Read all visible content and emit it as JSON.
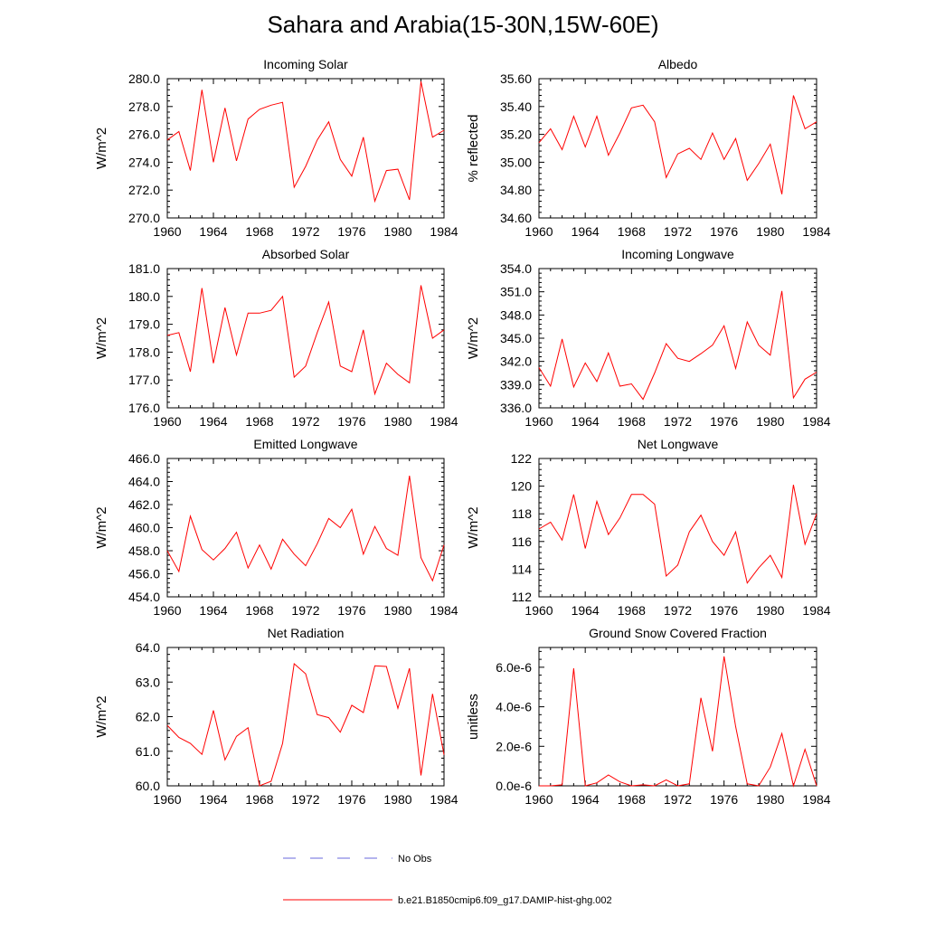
{
  "title": "Sahara and Arabia(15-30N,15W-60E)",
  "colors": {
    "model": "#ff0000",
    "obs": "#6a6adc",
    "axis": "#000000"
  },
  "legend": {
    "obs_label": "No Obs",
    "model_label": "b.e21.B1850cmip6.f09_g17.DAMIP-hist-ghg.002"
  },
  "chart_data": [
    {
      "type": "line",
      "title": "Incoming Solar",
      "ylabel": "W/m^2",
      "xlim": [
        1960,
        1984
      ],
      "ylim": [
        270,
        280
      ],
      "xticks": [
        "1960",
        "1964",
        "1968",
        "1972",
        "1976",
        "1980",
        "1984"
      ],
      "yticks": [
        "270.0",
        "272.0",
        "274.0",
        "276.0",
        "278.0",
        "280.0"
      ],
      "x": [
        1960,
        1961,
        1962,
        1963,
        1964,
        1965,
        1966,
        1967,
        1968,
        1969,
        1970,
        1971,
        1972,
        1973,
        1974,
        1975,
        1976,
        1977,
        1978,
        1979,
        1980,
        1981,
        1982,
        1983,
        1984
      ],
      "series": [
        {
          "name": "b.e21.B1850cmip6.f09_g17.DAMIP-hist-ghg.002",
          "values": [
            275.6,
            276.2,
            273.4,
            279.2,
            274.0,
            277.9,
            274.1,
            277.1,
            277.8,
            278.1,
            278.3,
            272.2,
            273.7,
            275.6,
            276.9,
            274.2,
            273.0,
            275.8,
            271.2,
            273.4,
            273.5,
            271.3,
            279.8,
            275.8,
            276.3
          ]
        }
      ]
    },
    {
      "type": "line",
      "title": "Albedo",
      "ylabel": "% reflected",
      "xlim": [
        1960,
        1984
      ],
      "ylim": [
        34.6,
        35.6
      ],
      "xticks": [
        "1960",
        "1964",
        "1968",
        "1972",
        "1976",
        "1980",
        "1984"
      ],
      "yticks": [
        "34.60",
        "34.80",
        "35.00",
        "35.20",
        "35.40",
        "35.60"
      ],
      "x": [
        1960,
        1961,
        1962,
        1963,
        1964,
        1965,
        1966,
        1967,
        1968,
        1969,
        1970,
        1971,
        1972,
        1973,
        1974,
        1975,
        1976,
        1977,
        1978,
        1979,
        1980,
        1981,
        1982,
        1983,
        1984
      ],
      "series": [
        {
          "name": "b.e21.B1850cmip6.f09_g17.DAMIP-hist-ghg.002",
          "values": [
            35.14,
            35.24,
            35.09,
            35.33,
            35.11,
            35.33,
            35.05,
            35.21,
            35.39,
            35.41,
            35.29,
            34.89,
            35.06,
            35.1,
            35.02,
            35.21,
            35.02,
            35.17,
            34.87,
            34.99,
            35.13,
            34.77,
            35.48,
            35.24,
            35.29
          ]
        }
      ]
    },
    {
      "type": "line",
      "title": "Absorbed Solar",
      "ylabel": "W/m^2",
      "xlim": [
        1960,
        1984
      ],
      "ylim": [
        176,
        181
      ],
      "xticks": [
        "1960",
        "1964",
        "1968",
        "1972",
        "1976",
        "1980",
        "1984"
      ],
      "yticks": [
        "176.0",
        "177.0",
        "178.0",
        "179.0",
        "180.0",
        "181.0"
      ],
      "x": [
        1960,
        1961,
        1962,
        1963,
        1964,
        1965,
        1966,
        1967,
        1968,
        1969,
        1970,
        1971,
        1972,
        1973,
        1974,
        1975,
        1976,
        1977,
        1978,
        1979,
        1980,
        1981,
        1982,
        1983,
        1984
      ],
      "series": [
        {
          "name": "b.e21.B1850cmip6.f09_g17.DAMIP-hist-ghg.002",
          "values": [
            178.6,
            178.7,
            177.3,
            180.3,
            177.6,
            179.6,
            177.9,
            179.4,
            179.4,
            179.5,
            180.0,
            177.1,
            177.5,
            178.7,
            179.8,
            177.5,
            177.3,
            178.8,
            176.5,
            177.6,
            177.2,
            176.9,
            180.4,
            178.5,
            178.8
          ]
        }
      ]
    },
    {
      "type": "line",
      "title": "Incoming Longwave",
      "ylabel": "W/m^2",
      "xlim": [
        1960,
        1984
      ],
      "ylim": [
        336,
        354
      ],
      "xticks": [
        "1960",
        "1964",
        "1968",
        "1972",
        "1976",
        "1980",
        "1984"
      ],
      "yticks": [
        "336.0",
        "339.0",
        "342.0",
        "345.0",
        "348.0",
        "351.0",
        "354.0"
      ],
      "x": [
        1960,
        1961,
        1962,
        1963,
        1964,
        1965,
        1966,
        1967,
        1968,
        1969,
        1970,
        1971,
        1972,
        1973,
        1974,
        1975,
        1976,
        1977,
        1978,
        1979,
        1980,
        1981,
        1982,
        1983,
        1984
      ],
      "series": [
        {
          "name": "b.e21.B1850cmip6.f09_g17.DAMIP-hist-ghg.002",
          "values": [
            341.2,
            338.8,
            344.9,
            338.7,
            341.8,
            339.4,
            343.1,
            338.8,
            339.1,
            337.1,
            340.5,
            344.3,
            342.4,
            342.0,
            343.0,
            344.1,
            346.6,
            341.1,
            347.1,
            344.1,
            342.8,
            351.1,
            337.3,
            339.7,
            340.6
          ]
        }
      ]
    },
    {
      "type": "line",
      "title": "Emitted Longwave",
      "ylabel": "W/m^2",
      "xlim": [
        1960,
        1984
      ],
      "ylim": [
        454,
        466
      ],
      "xticks": [
        "1960",
        "1964",
        "1968",
        "1972",
        "1976",
        "1980",
        "1984"
      ],
      "yticks": [
        "454.0",
        "456.0",
        "458.0",
        "460.0",
        "462.0",
        "464.0",
        "466.0"
      ],
      "x": [
        1960,
        1961,
        1962,
        1963,
        1964,
        1965,
        1966,
        1967,
        1968,
        1969,
        1970,
        1971,
        1972,
        1973,
        1974,
        1975,
        1976,
        1977,
        1978,
        1979,
        1980,
        1981,
        1982,
        1983,
        1984
      ],
      "series": [
        {
          "name": "b.e21.B1850cmip6.f09_g17.DAMIP-hist-ghg.002",
          "values": [
            458.0,
            456.2,
            461.0,
            458.1,
            457.2,
            458.2,
            459.6,
            456.5,
            458.5,
            456.4,
            459.0,
            457.7,
            456.7,
            458.6,
            460.8,
            460.0,
            461.6,
            457.7,
            460.1,
            458.2,
            457.6,
            464.5,
            457.4,
            455.4,
            458.5
          ]
        }
      ]
    },
    {
      "type": "line",
      "title": "Net Longwave",
      "ylabel": "W/m^2",
      "xlim": [
        1960,
        1984
      ],
      "ylim": [
        112,
        122
      ],
      "xticks": [
        "1960",
        "1964",
        "1968",
        "1972",
        "1976",
        "1980",
        "1984"
      ],
      "yticks": [
        "112",
        "114",
        "116",
        "118",
        "120",
        "122"
      ],
      "x": [
        1960,
        1961,
        1962,
        1963,
        1964,
        1965,
        1966,
        1967,
        1968,
        1969,
        1970,
        1971,
        1972,
        1973,
        1974,
        1975,
        1976,
        1977,
        1978,
        1979,
        1980,
        1981,
        1982,
        1983,
        1984
      ],
      "series": [
        {
          "name": "b.e21.B1850cmip6.f09_g17.DAMIP-hist-ghg.002",
          "values": [
            116.9,
            117.4,
            116.1,
            119.4,
            115.5,
            118.9,
            116.5,
            117.7,
            119.4,
            119.4,
            118.7,
            113.5,
            114.3,
            116.7,
            117.9,
            116.0,
            115.0,
            116.7,
            113.0,
            114.1,
            115.0,
            113.4,
            120.1,
            115.8,
            118.0
          ]
        }
      ]
    },
    {
      "type": "line",
      "title": "Net Radiation",
      "ylabel": "W/m^2",
      "xlim": [
        1960,
        1984
      ],
      "ylim": [
        60,
        64
      ],
      "xticks": [
        "1960",
        "1964",
        "1968",
        "1972",
        "1976",
        "1980",
        "1984"
      ],
      "yticks": [
        "60.0",
        "61.0",
        "62.0",
        "63.0",
        "64.0"
      ],
      "x": [
        1960,
        1961,
        1962,
        1963,
        1964,
        1965,
        1966,
        1967,
        1968,
        1969,
        1970,
        1971,
        1972,
        1973,
        1974,
        1975,
        1976,
        1977,
        1978,
        1979,
        1980,
        1981,
        1982,
        1983,
        1984
      ],
      "series": [
        {
          "name": "b.e21.B1850cmip6.f09_g17.DAMIP-hist-ghg.002",
          "values": [
            61.75,
            61.4,
            61.23,
            60.91,
            62.18,
            60.75,
            61.43,
            61.68,
            60.0,
            60.13,
            61.23,
            63.53,
            63.24,
            62.06,
            61.97,
            61.55,
            62.33,
            62.12,
            63.47,
            63.45,
            62.24,
            63.4,
            60.3,
            62.66,
            60.9
          ]
        }
      ]
    },
    {
      "type": "line",
      "title": "Ground Snow Covered Fraction",
      "ylabel": "unitless",
      "xlim": [
        1960,
        1984
      ],
      "ylim": [
        0,
        7e-06
      ],
      "xticks": [
        "1960",
        "1964",
        "1968",
        "1972",
        "1976",
        "1980",
        "1984"
      ],
      "yticks": [
        "0.0e-6",
        "2.0e-6",
        "4.0e-6",
        "6.0e-6"
      ],
      "ytick_values": [
        0,
        2e-06,
        4e-06,
        6e-06
      ],
      "x": [
        1960,
        1961,
        1962,
        1963,
        1964,
        1965,
        1966,
        1967,
        1968,
        1969,
        1970,
        1971,
        1972,
        1973,
        1974,
        1975,
        1976,
        1977,
        1978,
        1979,
        1980,
        1981,
        1982,
        1983,
        1984
      ],
      "series": [
        {
          "name": "b.e21.B1850cmip6.f09_g17.DAMIP-hist-ghg.002",
          "values": [
            0,
            0,
            5e-08,
            5.95e-06,
            0,
            1.5e-07,
            5.5e-07,
            2e-07,
            0,
            5e-08,
            0,
            3e-07,
            0,
            1e-07,
            4.45e-06,
            1.75e-06,
            6.55e-06,
            3e-06,
            1e-07,
            0,
            9.5e-07,
            2.65e-06,
            0,
            1.85e-06,
            0
          ]
        }
      ]
    }
  ]
}
